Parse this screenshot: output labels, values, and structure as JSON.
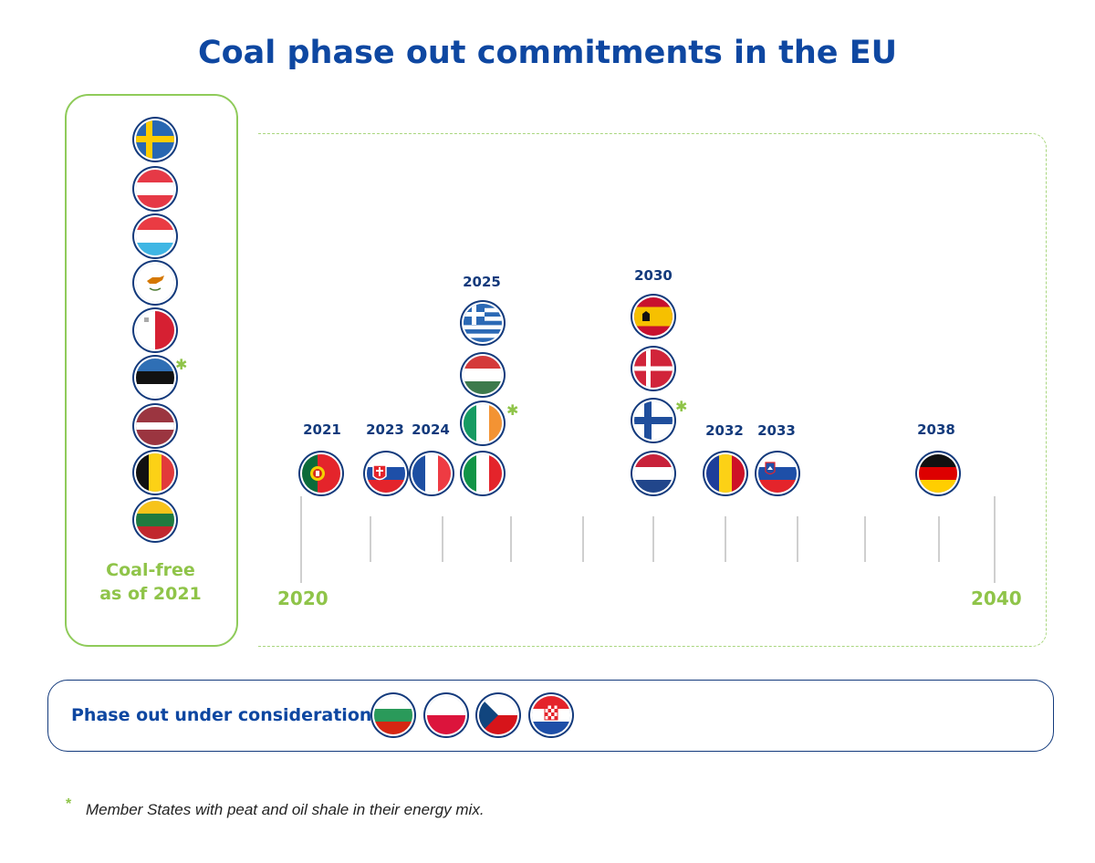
{
  "title": "Coal phase out commitments in the EU",
  "coal_free": {
    "label_line1": "Coal-free",
    "label_line2": "as of 2021",
    "flags": [
      "sweden-flag",
      "austria-flag",
      "luxembourg-flag",
      "cyprus-flag",
      "malta-flag",
      "estonia-flag",
      "latvia-flag",
      "belgium-flag",
      "lithuania-flag"
    ]
  },
  "timeline": {
    "start_label": "2020",
    "end_label": "2040",
    "years": [
      "2021",
      "2023",
      "2024",
      "2025",
      "2030",
      "2032",
      "2033",
      "2038"
    ]
  },
  "consideration": {
    "label": "Phase out under consideration",
    "flags": [
      "bulgaria-flag",
      "poland-flag",
      "czechia-flag",
      "croatia-flag"
    ]
  },
  "footnote": {
    "marker": "*",
    "text": "Member States with peat and oil shale in their energy mix."
  },
  "colors": {
    "title_blue": "#0e47a1",
    "accent_green": "#8fc449",
    "ring_navy": "#133a7c"
  }
}
